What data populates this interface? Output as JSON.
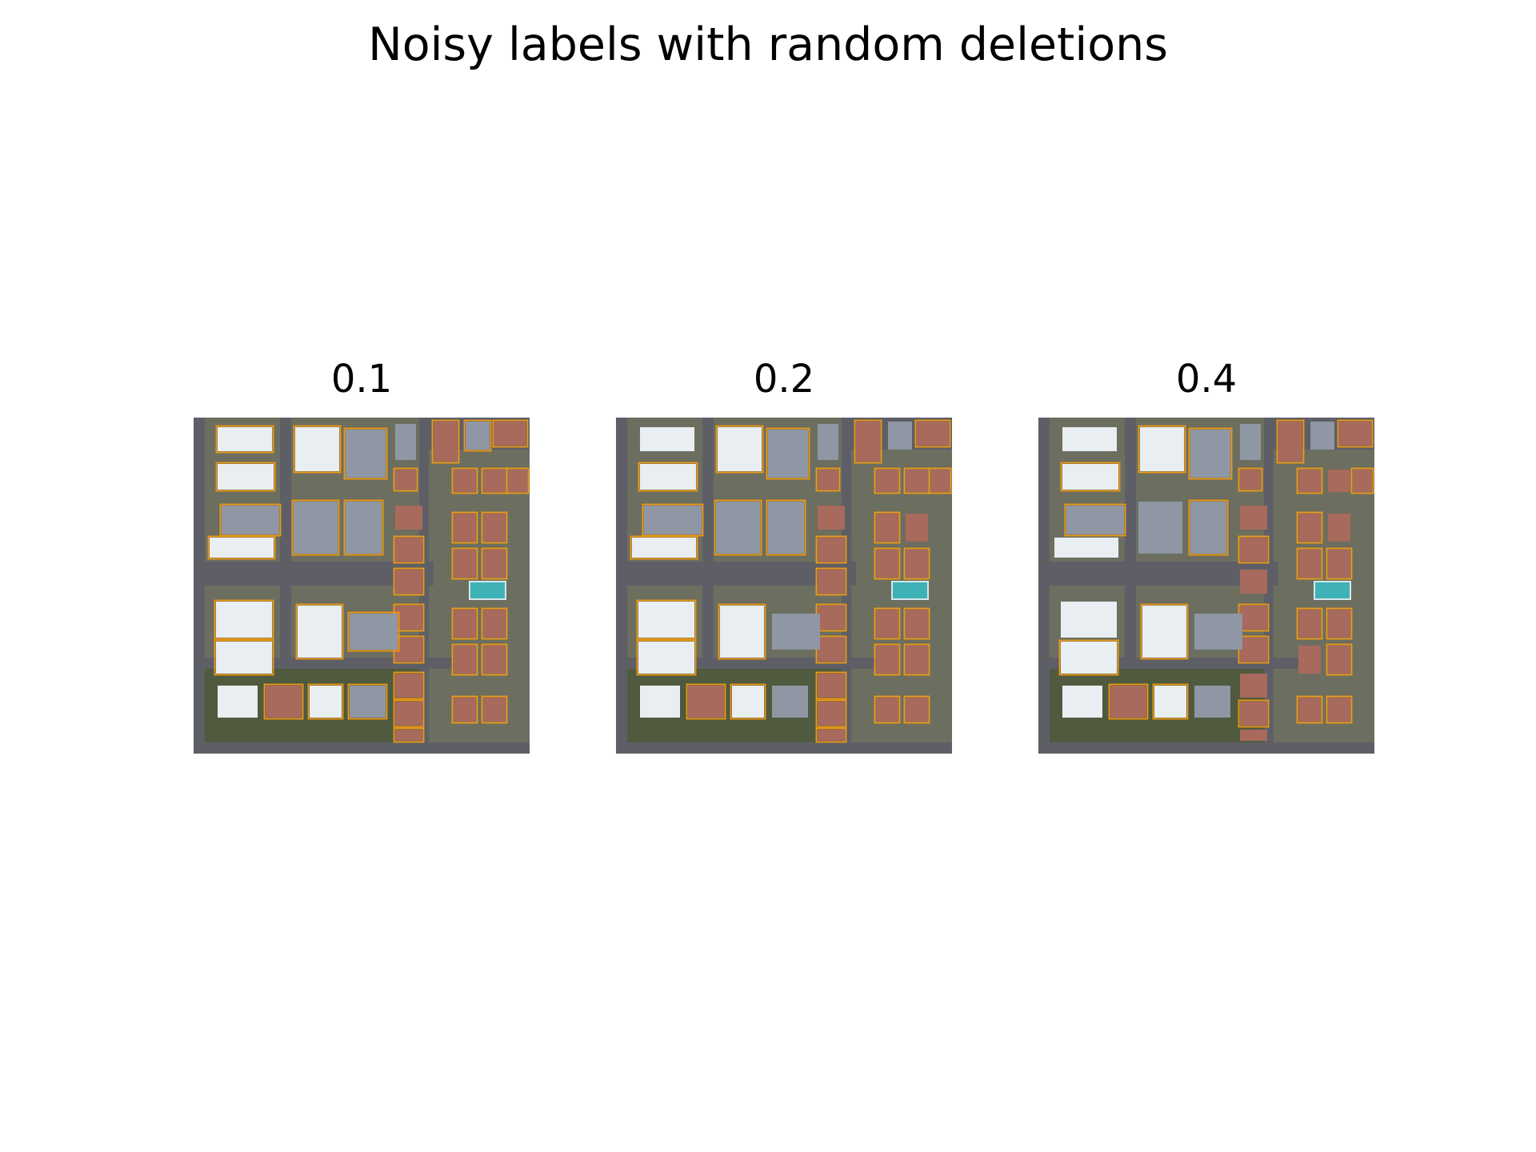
{
  "figure": {
    "title": "Noisy labels with random deletions"
  },
  "panels": [
    {
      "title": "0.1",
      "deleted_fraction": 0.1
    },
    {
      "title": "0.2",
      "deleted_fraction": 0.2
    },
    {
      "title": "0.4",
      "deleted_fraction": 0.4
    }
  ],
  "colors": {
    "road": "#5e5f66",
    "ground": "#6c6e60",
    "grass": "#4f5a3f",
    "roof_white": "#e9eef2",
    "roof_gray": "#8e97a3",
    "roof_red": "#a76a5c",
    "pool": "#3fb2b8",
    "label_outline": "#f29a12"
  }
}
